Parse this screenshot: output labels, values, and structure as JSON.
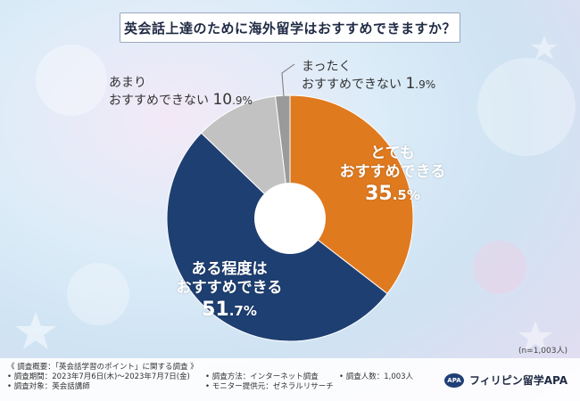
{
  "colors": {
    "very": "#e07a1f",
    "somewhat": "#1e3f72",
    "not_much": "#c2c2c2",
    "not_at_all": "#9a9a9a"
  },
  "chart_data": {
    "type": "pie",
    "title": "英会話上達のために海外留学はおすすめできますか？",
    "slices": [
      {
        "key": "very",
        "line1": "とても",
        "line2": "おすすめできる",
        "value_int": "35",
        "value_dec": ".5",
        "unit": "%",
        "value": 35.5
      },
      {
        "key": "somewhat",
        "line1": "ある程度は",
        "line2": "おすすめできる",
        "value_int": "51",
        "value_dec": ".7",
        "unit": "%",
        "value": 51.7
      },
      {
        "key": "not_much",
        "line1": "あまり",
        "line2": "おすすめできない",
        "value_int": "10",
        "value_dec": ".9",
        "unit": "%",
        "value": 10.9
      },
      {
        "key": "not_at_all",
        "line1": "まったく",
        "line2": "おすすめできない",
        "value_int": "1",
        "value_dec": ".9",
        "unit": "%",
        "value": 1.9
      }
    ],
    "sample": "(n=1,003人)"
  },
  "footer": {
    "overview": "《 調査概要：「英会話学習のポイント」に関する調査 》",
    "period": "• 調査期間：2023年7月6日(木)〜2023年7月7日(金)",
    "target": "• 調査対象：英会話講師",
    "method": "• 調査方法：インターネット調査",
    "provider": "• モニター提供元：ゼネラルリサーチ",
    "count": "• 調査人数：1,003人",
    "brand_badge": "APA",
    "brand": "フィリピン留学APA"
  }
}
